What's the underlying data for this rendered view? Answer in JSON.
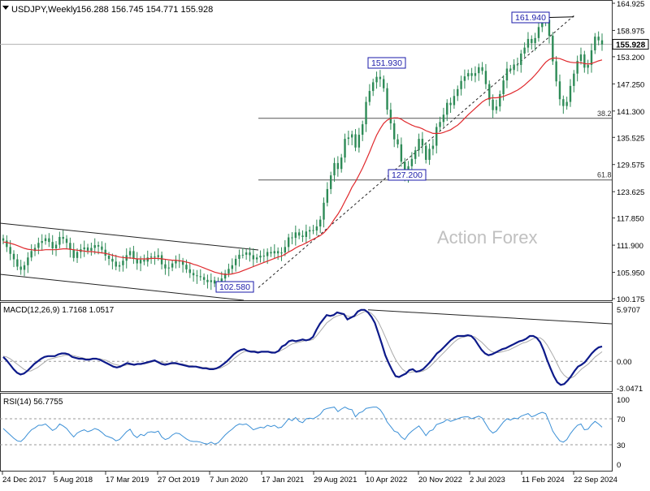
{
  "header": {
    "symbol_text": "USDJPY,Weekly",
    "ohlc_text": "156.288 156.745 154.771 155.928"
  },
  "watermark": "Action Forex",
  "colors": {
    "candles": "#2e8b57",
    "ma": "#e0292d",
    "macd": "#0d1a8a",
    "signal": "#aaaaaa",
    "rsi": "#3a8fd6",
    "levels": "#555555",
    "trendline": "#222222",
    "label_box": "#1a1aa8"
  },
  "chart_data": [
    {
      "type": "candlestick",
      "panel": "price",
      "y_ticks": [
        "164.925",
        "158.975",
        "153.200",
        "147.250",
        "141.300",
        "135.525",
        "129.575",
        "123.625",
        "117.850",
        "111.900",
        "105.950",
        "100.175"
      ],
      "ylim": [
        100.175,
        164.925
      ],
      "current_price": "155.928",
      "x_ticks": [
        "24 Dec 2017",
        "5 Aug 2018",
        "17 Mar 2019",
        "27 Oct 2019",
        "7 Jun 2020",
        "17 Jan 2021",
        "29 Aug 2021",
        "10 Apr 2022",
        "20 Nov 2022",
        "2 Jul 2023",
        "11 Feb 2024",
        "22 Sep 2024"
      ],
      "series": [
        {
          "name": "",
          "values": [
            112.9,
            111.5,
            110.0,
            108.8,
            107.2,
            106.5,
            107.5,
            109.2,
            110.6,
            111.3,
            112.4,
            112.8,
            113.4,
            112.6,
            111.2,
            112.0,
            113.7,
            113.3,
            112.4,
            110.9,
            109.1,
            110.4,
            111.0,
            111.4,
            110.7,
            111.3,
            111.9,
            111.6,
            110.9,
            109.6,
            108.9,
            108.3,
            107.2,
            107.5,
            108.5,
            109.7,
            110.6,
            108.9,
            107.9,
            108.7,
            108.3,
            109.2,
            109.4,
            109.3,
            109.7,
            107.7,
            106.8,
            107.0,
            107.9,
            108.5,
            108.3,
            107.6,
            106.6,
            105.8,
            105.3,
            105.1,
            104.9,
            104.3,
            103.8,
            104.2,
            103.5,
            103.7,
            104.6,
            105.7,
            106.7,
            107.5,
            108.9,
            109.8,
            109.8,
            110.3,
            109.7,
            108.8,
            109.2,
            109.6,
            109.5,
            110.4,
            110.1,
            110.6,
            110.1,
            110.3,
            111.5,
            113.6,
            113.5,
            114.7,
            114.0,
            113.7,
            114.9,
            115.2,
            115.1,
            116.0,
            117.5,
            121.2,
            124.2,
            127.2,
            129.9,
            128.6,
            131.1,
            135.2,
            135.5,
            136.2,
            133.3,
            136.1,
            138.4,
            143.3,
            145.7,
            147.6,
            148.8,
            148.3,
            146.3,
            141.6,
            138.6,
            135.1,
            134.0,
            130.2,
            127.3,
            129.2,
            130.8,
            132.7,
            135.2,
            133.7,
            130.6,
            133.0,
            133.7,
            137.8,
            138.9,
            140.5,
            143.1,
            142.6,
            144.6,
            146.1,
            147.9,
            148.9,
            149.6,
            149.0,
            149.6,
            150.9,
            150.1,
            147.2,
            143.8,
            141.5,
            142.3,
            145.0,
            148.0,
            150.6,
            150.3,
            151.5,
            151.4,
            153.9,
            155.2,
            157.1,
            156.2,
            157.3,
            159.7,
            161.6,
            161.3,
            157.8,
            152.2,
            147.8,
            143.9,
            142.4,
            143.3,
            146.8,
            149.5,
            152.3,
            153.7,
            150.8,
            151.4,
            154.6,
            157.6,
            156.8,
            155.9
          ]
        },
        {
          "name": "",
          "values": [
            112.6,
            112.5,
            112.3,
            112.1,
            111.8,
            111.5,
            111.2,
            111.0,
            110.9,
            110.8,
            110.8,
            110.8,
            110.9,
            110.9,
            110.9,
            110.9,
            111.0,
            111.1,
            111.1,
            111.0,
            110.9,
            110.8,
            110.7,
            110.6,
            110.5,
            110.5,
            110.4,
            110.3,
            110.2,
            110.1,
            109.9,
            109.7,
            109.5,
            109.3,
            109.2,
            109.1,
            109.1,
            109.0,
            108.9,
            108.9,
            108.9,
            108.9,
            109.0,
            109.0,
            109.0,
            108.9,
            108.8,
            108.7,
            108.6,
            108.6,
            108.5,
            108.4,
            108.2,
            108.0,
            107.7,
            107.5,
            107.2,
            106.9,
            106.6,
            106.3,
            106.0,
            105.8,
            105.6,
            105.5,
            105.5,
            105.6,
            105.8,
            106.0,
            106.3,
            106.6,
            106.9,
            107.2,
            107.5,
            107.8,
            108.1,
            108.4,
            108.7,
            109.0,
            109.3,
            109.5,
            109.9,
            110.4,
            110.8,
            111.3,
            111.7,
            112.0,
            112.4,
            112.8,
            113.2,
            113.6,
            114.0,
            114.6,
            115.4,
            116.4,
            117.6,
            118.7,
            120.0,
            121.5,
            123.0,
            124.6,
            125.8,
            127.3,
            128.8,
            130.5,
            132.3,
            134.2,
            136.0,
            137.4,
            138.6,
            139.3,
            139.7,
            139.8,
            139.8,
            139.5,
            139.0,
            138.6,
            138.2,
            137.9,
            137.7,
            137.4,
            137.0,
            136.7,
            136.4,
            136.4,
            136.4,
            136.6,
            136.9,
            137.2,
            137.7,
            138.2,
            138.9,
            139.7,
            140.5,
            141.2,
            141.9,
            142.6,
            143.3,
            143.8,
            144.1,
            144.2,
            144.2,
            144.3,
            144.5,
            144.8,
            145.1,
            145.5,
            145.9,
            146.4,
            147.0,
            147.7,
            148.4,
            149.2,
            150.1,
            151.1,
            152.0,
            152.6,
            152.9,
            152.9,
            152.8,
            152.5,
            152.2,
            152.0,
            151.9,
            151.9,
            151.9,
            151.7,
            151.6,
            151.7,
            152.0,
            152.3,
            152.5
          ]
        }
      ],
      "annotations": [
        {
          "text": "161.940",
          "x": "2024-07",
          "y": 161.94
        },
        {
          "text": "151.930",
          "x": "2022-10",
          "y": 151.93
        },
        {
          "text": "127.200",
          "x": "2023-01",
          "y": 127.2
        },
        {
          "text": "102.580",
          "x": "2021-01",
          "y": 102.58
        }
      ],
      "levels": [
        {
          "text": "38.2",
          "y": 139.7
        },
        {
          "text": "61.8",
          "y": 126.2
        }
      ]
    },
    {
      "type": "line",
      "panel": "macd",
      "title": "MACD(12,26,9) 1.7168 1.0517",
      "y_ticks": [
        "5.9707",
        "0.00",
        "-3.0471"
      ],
      "ylim": [
        -3.0471,
        5.9707
      ],
      "series": [
        {
          "name": "",
          "values": [
            0.5,
            0.1,
            -0.4,
            -0.9,
            -1.3,
            -1.5,
            -1.4,
            -1.1,
            -0.7,
            -0.3,
            0.0,
            0.3,
            0.5,
            0.6,
            0.6,
            0.6,
            0.8,
            0.9,
            0.9,
            0.8,
            0.5,
            0.4,
            0.3,
            0.3,
            0.2,
            0.2,
            0.3,
            0.3,
            0.2,
            0.0,
            -0.2,
            -0.4,
            -0.6,
            -0.7,
            -0.6,
            -0.4,
            -0.2,
            -0.3,
            -0.4,
            -0.3,
            -0.3,
            -0.2,
            -0.1,
            0.0,
            0.1,
            -0.1,
            -0.3,
            -0.4,
            -0.3,
            -0.2,
            -0.2,
            -0.3,
            -0.4,
            -0.5,
            -0.6,
            -0.6,
            -0.6,
            -0.7,
            -0.8,
            -0.8,
            -0.9,
            -0.9,
            -0.8,
            -0.6,
            -0.3,
            0.0,
            0.4,
            0.8,
            1.1,
            1.3,
            1.4,
            1.2,
            1.1,
            1.1,
            1.0,
            1.1,
            1.1,
            1.1,
            1.0,
            1.0,
            1.2,
            1.7,
            1.9,
            2.3,
            2.4,
            2.3,
            2.4,
            2.5,
            2.4,
            2.5,
            2.8,
            3.6,
            4.3,
            4.8,
            5.3,
            5.2,
            5.3,
            5.6,
            5.5,
            5.4,
            4.8,
            5.0,
            5.2,
            5.7,
            5.9,
            5.9,
            5.6,
            5.1,
            4.4,
            3.2,
            2.0,
            0.7,
            -0.2,
            -1.0,
            -1.7,
            -1.8,
            -1.6,
            -1.4,
            -1.0,
            -0.9,
            -1.2,
            -1.1,
            -0.9,
            -0.5,
            -0.1,
            0.4,
            0.9,
            1.2,
            1.6,
            2.0,
            2.4,
            2.7,
            2.9,
            2.9,
            2.9,
            3.0,
            2.9,
            2.5,
            1.9,
            1.3,
            0.9,
            0.7,
            0.8,
            1.0,
            1.2,
            1.4,
            1.5,
            1.7,
            1.9,
            2.1,
            2.3,
            2.4,
            2.6,
            2.9,
            2.9,
            2.7,
            2.2,
            1.3,
            0.2,
            -0.8,
            -1.7,
            -2.4,
            -2.7,
            -2.6,
            -2.2,
            -1.7,
            -1.1,
            -0.6,
            -0.4,
            -0.1,
            0.4,
            0.9,
            1.3,
            1.6,
            1.7
          ]
        },
        {
          "name": "",
          "values": [
            0.6,
            0.5,
            0.3,
            0.0,
            -0.3,
            -0.6,
            -0.9,
            -1.1,
            -1.1,
            -0.9,
            -0.7,
            -0.4,
            -0.1,
            0.2,
            0.3,
            0.4,
            0.5,
            0.6,
            0.7,
            0.7,
            0.7,
            0.6,
            0.5,
            0.4,
            0.3,
            0.3,
            0.3,
            0.3,
            0.3,
            0.2,
            0.1,
            -0.1,
            -0.3,
            -0.4,
            -0.5,
            -0.5,
            -0.4,
            -0.4,
            -0.4,
            -0.3,
            -0.3,
            -0.3,
            -0.2,
            -0.1,
            0.0,
            0.0,
            -0.1,
            -0.2,
            -0.3,
            -0.3,
            -0.3,
            -0.3,
            -0.3,
            -0.4,
            -0.5,
            -0.5,
            -0.6,
            -0.6,
            -0.7,
            -0.7,
            -0.8,
            -0.8,
            -0.8,
            -0.8,
            -0.6,
            -0.4,
            -0.1,
            0.3,
            0.6,
            0.9,
            1.1,
            1.2,
            1.2,
            1.2,
            1.1,
            1.1,
            1.1,
            1.1,
            1.1,
            1.0,
            1.1,
            1.3,
            1.5,
            1.8,
            2.0,
            2.1,
            2.2,
            2.3,
            2.4,
            2.4,
            2.5,
            2.9,
            3.4,
            3.9,
            4.4,
            4.7,
            5.0,
            5.2,
            5.3,
            5.4,
            5.2,
            5.1,
            5.1,
            5.3,
            5.5,
            5.7,
            5.7,
            5.5,
            5.1,
            4.5,
            3.7,
            2.8,
            1.9,
            1.0,
            0.2,
            -0.4,
            -0.9,
            -1.2,
            -1.3,
            -1.2,
            -1.2,
            -1.2,
            -1.1,
            -0.9,
            -0.6,
            -0.2,
            0.2,
            0.6,
            1.0,
            1.4,
            1.8,
            2.2,
            2.5,
            2.7,
            2.8,
            2.9,
            2.9,
            2.8,
            2.5,
            2.2,
            1.8,
            1.4,
            1.1,
            1.0,
            1.0,
            1.1,
            1.2,
            1.3,
            1.5,
            1.7,
            1.9,
            2.1,
            2.2,
            2.4,
            2.6,
            2.7,
            2.7,
            2.4,
            1.9,
            1.2,
            0.5,
            -0.3,
            -1.1,
            -1.6,
            -1.9,
            -1.9,
            -1.7,
            -1.3,
            -0.9,
            -0.6,
            -0.3,
            0.1,
            0.5,
            0.8,
            1.1
          ]
        }
      ]
    },
    {
      "type": "line",
      "panel": "rsi",
      "title": "RSI(14) 56.7755",
      "y_ticks": [
        "100",
        "70",
        "30",
        "0"
      ],
      "ylim": [
        0,
        100
      ],
      "series": [
        {
          "name": "",
          "values": [
            55,
            50,
            45,
            40,
            36,
            35,
            40,
            47,
            53,
            56,
            60,
            60,
            62,
            57,
            52,
            55,
            62,
            59,
            55,
            48,
            42,
            48,
            51,
            53,
            50,
            52,
            55,
            53,
            49,
            44,
            42,
            40,
            36,
            38,
            44,
            50,
            54,
            45,
            41,
            46,
            44,
            49,
            50,
            49,
            51,
            42,
            38,
            40,
            45,
            48,
            47,
            43,
            39,
            36,
            35,
            35,
            34,
            32,
            31,
            34,
            31,
            33,
            39,
            45,
            50,
            54,
            59,
            62,
            61,
            62,
            58,
            53,
            55,
            57,
            56,
            60,
            58,
            60,
            56,
            57,
            63,
            70,
            67,
            72,
            66,
            64,
            70,
            71,
            70,
            73,
            77,
            84,
            86,
            87,
            88,
            81,
            85,
            88,
            85,
            84,
            73,
            79,
            81,
            86,
            87,
            88,
            88,
            84,
            76,
            65,
            58,
            51,
            49,
            42,
            38,
            46,
            51,
            55,
            59,
            52,
            44,
            51,
            53,
            61,
            63,
            65,
            69,
            66,
            68,
            70,
            72,
            73,
            73,
            70,
            72,
            74,
            71,
            62,
            53,
            48,
            51,
            58,
            65,
            70,
            68,
            71,
            70,
            74,
            76,
            78,
            73,
            75,
            78,
            80,
            78,
            65,
            51,
            43,
            36,
            34,
            38,
            47,
            54,
            60,
            62,
            53,
            54,
            61,
            66,
            62,
            57
          ]
        }
      ]
    }
  ]
}
